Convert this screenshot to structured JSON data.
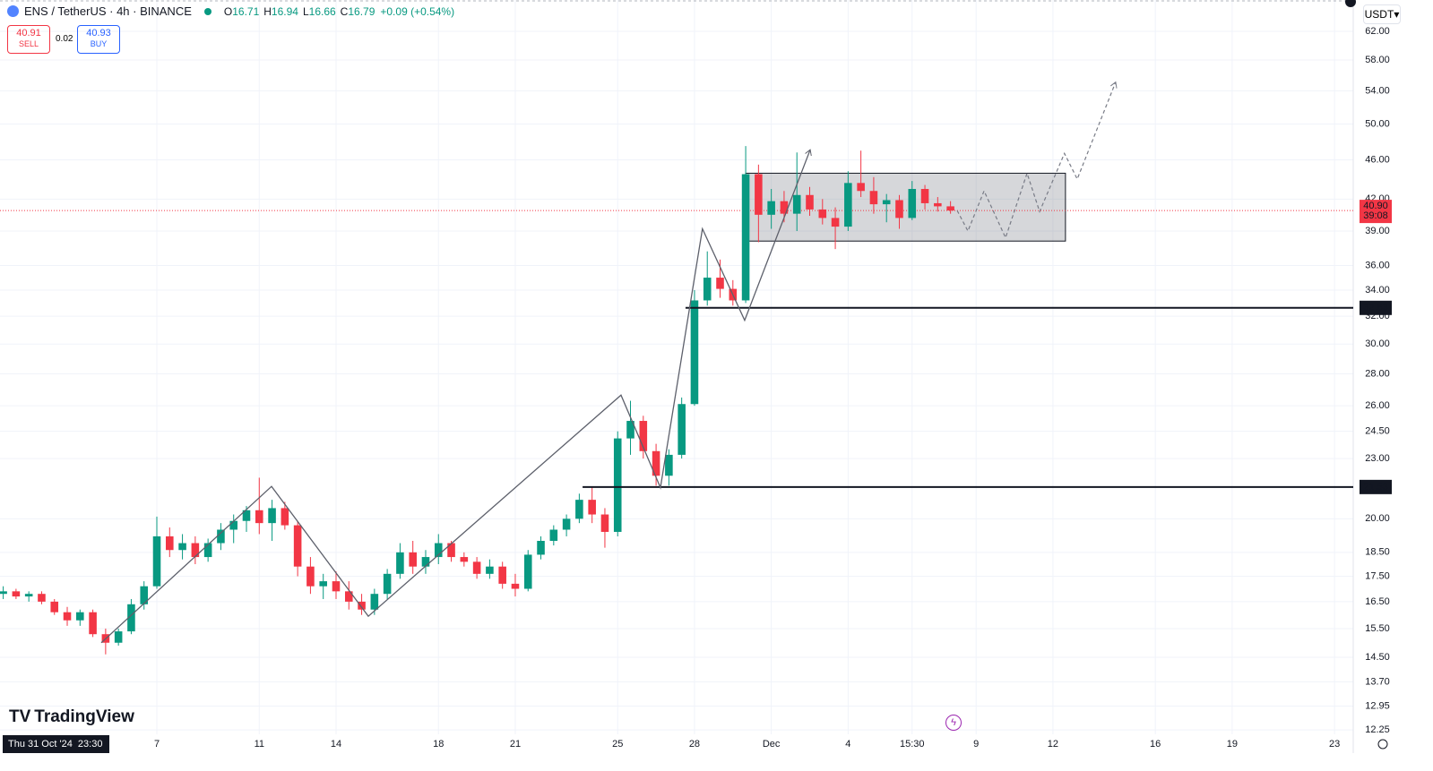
{
  "header": {
    "symbol": "ENS / TetherUS · 4h · BINANCE",
    "ohlc": [
      {
        "k": "O",
        "v": "16.71"
      },
      {
        "k": "H",
        "v": "16.94"
      },
      {
        "k": "L",
        "v": "16.66"
      },
      {
        "k": "C",
        "v": "16.79"
      }
    ],
    "change": "+0.09 (+0.54%)",
    "currency": "USDT"
  },
  "trade": {
    "sell_price": "40.91",
    "sell": "SELL",
    "spread": "0.02",
    "buy_price": "40.93",
    "buy": "BUY"
  },
  "brand": "TradingView",
  "cursor_time": "Thu 31 Oct '24  23:30",
  "chart_data": {
    "type": "candlestick",
    "log_scale": true,
    "grid": true,
    "up_color": "#089981",
    "down_color": "#f23645",
    "xlim": [
      -0.126,
      52.73
    ],
    "ylim": [
      11.61,
      66.67
    ],
    "xticks": [
      {
        "value": 6,
        "label": "7"
      },
      {
        "value": 10,
        "label": "11"
      },
      {
        "value": 13,
        "label": "14"
      },
      {
        "value": 17,
        "label": "18"
      },
      {
        "value": 20,
        "label": "21"
      },
      {
        "value": 24,
        "label": "25"
      },
      {
        "value": 27,
        "label": "28"
      },
      {
        "value": 30,
        "label": "Dec"
      },
      {
        "value": 33,
        "label": "4"
      },
      {
        "value": 35.5,
        "label": "15:30"
      },
      {
        "value": 38,
        "label": "9"
      },
      {
        "value": 41,
        "label": "12"
      },
      {
        "value": 45,
        "label": "16"
      },
      {
        "value": 48,
        "label": "19"
      },
      {
        "value": 52,
        "label": "23"
      }
    ],
    "yticks": [
      {
        "value": 62,
        "label": "62.00"
      },
      {
        "value": 58,
        "label": "58.00"
      },
      {
        "value": 54,
        "label": "54.00"
      },
      {
        "value": 50,
        "label": "50.00"
      },
      {
        "value": 46,
        "label": "46.00"
      },
      {
        "value": 42,
        "label": "42.00"
      },
      {
        "value": 39,
        "label": "39.00"
      },
      {
        "value": 36,
        "label": "36.00"
      },
      {
        "value": 34,
        "label": "34.00"
      },
      {
        "value": 32,
        "label": "32.00"
      },
      {
        "value": 30,
        "label": "30.00"
      },
      {
        "value": 28,
        "label": "28.00"
      },
      {
        "value": 26,
        "label": "26.00"
      },
      {
        "value": 24.5,
        "label": "24.50"
      },
      {
        "value": 23,
        "label": "23.00"
      },
      {
        "value": 20,
        "label": "20.00"
      },
      {
        "value": 18.5,
        "label": "18.50"
      },
      {
        "value": 17.5,
        "label": "17.50"
      },
      {
        "value": 16.5,
        "label": "16.50"
      },
      {
        "value": 15.5,
        "label": "15.50"
      },
      {
        "value": 14.5,
        "label": "14.50"
      },
      {
        "value": 13.7,
        "label": "13.70"
      },
      {
        "value": 12.95,
        "label": "12.95"
      },
      {
        "value": 12.25,
        "label": "12.25"
      }
    ],
    "candles": {
      "x": [
        0,
        0.5,
        1,
        1.5,
        2,
        2.5,
        3,
        3.5,
        4,
        4.5,
        5,
        5.5,
        6,
        6.5,
        7,
        7.5,
        8,
        8.5,
        9,
        9.5,
        10,
        10.5,
        11,
        11.5,
        12,
        12.5,
        13,
        13.5,
        14,
        14.5,
        15,
        15.5,
        16,
        16.5,
        17,
        17.5,
        18,
        18.5,
        19,
        19.5,
        20,
        20.5,
        21,
        21.5,
        22,
        22.5,
        23,
        23.5,
        24,
        24.5,
        25,
        25.5,
        26,
        26.5,
        27,
        27.5,
        28,
        28.5,
        29,
        29.5,
        30,
        30.5,
        31,
        31.5,
        32,
        32.5,
        33,
        33.5,
        34,
        34.5,
        35,
        35.5,
        36,
        36.5,
        37
      ],
      "ohlc": [
        [
          16.8,
          17.1,
          16.6,
          16.9
        ],
        [
          16.9,
          17.0,
          16.6,
          16.7
        ],
        [
          16.7,
          16.9,
          16.5,
          16.8
        ],
        [
          16.8,
          16.9,
          16.4,
          16.5
        ],
        [
          16.5,
          16.6,
          16.0,
          16.1
        ],
        [
          16.1,
          16.3,
          15.6,
          15.8
        ],
        [
          15.8,
          16.2,
          15.6,
          16.1
        ],
        [
          16.1,
          16.2,
          15.2,
          15.3
        ],
        [
          15.3,
          15.5,
          14.6,
          15.0
        ],
        [
          15.0,
          15.5,
          14.9,
          15.4
        ],
        [
          15.4,
          16.6,
          15.3,
          16.4
        ],
        [
          16.4,
          17.3,
          16.2,
          17.1
        ],
        [
          17.1,
          20.1,
          17.0,
          19.2
        ],
        [
          19.2,
          19.6,
          18.3,
          18.6
        ],
        [
          18.6,
          19.3,
          18.2,
          18.9
        ],
        [
          18.9,
          19.2,
          18.0,
          18.3
        ],
        [
          18.3,
          19.1,
          18.1,
          18.9
        ],
        [
          18.9,
          19.8,
          18.6,
          19.5
        ],
        [
          19.5,
          20.2,
          18.9,
          19.9
        ],
        [
          19.9,
          20.6,
          19.4,
          20.4
        ],
        [
          20.4,
          22.0,
          19.3,
          19.8
        ],
        [
          19.8,
          20.9,
          19.0,
          20.5
        ],
        [
          20.5,
          20.8,
          19.5,
          19.7
        ],
        [
          19.7,
          19.9,
          17.5,
          17.9
        ],
        [
          17.9,
          18.3,
          16.8,
          17.1
        ],
        [
          17.1,
          17.6,
          16.6,
          17.3
        ],
        [
          17.3,
          17.7,
          16.6,
          16.9
        ],
        [
          16.9,
          17.3,
          16.2,
          16.5
        ],
        [
          16.5,
          16.8,
          16.0,
          16.2
        ],
        [
          16.2,
          17.0,
          16.0,
          16.8
        ],
        [
          16.8,
          17.8,
          16.6,
          17.6
        ],
        [
          17.6,
          18.9,
          17.4,
          18.5
        ],
        [
          18.5,
          19.0,
          17.6,
          17.9
        ],
        [
          17.9,
          18.6,
          17.6,
          18.3
        ],
        [
          18.3,
          19.3,
          18.0,
          18.9
        ],
        [
          18.9,
          19.0,
          18.1,
          18.3
        ],
        [
          18.3,
          18.5,
          17.9,
          18.1
        ],
        [
          18.1,
          18.3,
          17.4,
          17.6
        ],
        [
          17.6,
          18.2,
          17.4,
          17.9
        ],
        [
          17.9,
          18.1,
          17.0,
          17.2
        ],
        [
          17.2,
          17.6,
          16.7,
          17.0
        ],
        [
          17.0,
          18.6,
          16.9,
          18.4
        ],
        [
          18.4,
          19.2,
          18.2,
          19.0
        ],
        [
          19.0,
          19.7,
          18.8,
          19.5
        ],
        [
          19.5,
          20.2,
          19.2,
          20.0
        ],
        [
          20.0,
          21.2,
          19.8,
          20.9
        ],
        [
          20.9,
          21.5,
          19.8,
          20.2
        ],
        [
          20.2,
          20.5,
          18.7,
          19.4
        ],
        [
          19.4,
          24.5,
          19.2,
          24.1
        ],
        [
          24.1,
          26.3,
          23.2,
          25.1
        ],
        [
          25.1,
          25.4,
          23.0,
          23.4
        ],
        [
          23.4,
          23.8,
          21.6,
          22.1
        ],
        [
          22.1,
          23.5,
          21.6,
          23.2
        ],
        [
          23.2,
          26.5,
          23.0,
          26.1
        ],
        [
          26.1,
          34.0,
          26.0,
          33.2
        ],
        [
          33.2,
          37.2,
          32.8,
          35.0
        ],
        [
          35.0,
          36.5,
          33.4,
          34.1
        ],
        [
          34.1,
          34.8,
          32.8,
          33.2
        ],
        [
          33.2,
          47.5,
          33.0,
          44.5
        ],
        [
          44.5,
          45.5,
          38.0,
          40.5
        ],
        [
          40.5,
          43.0,
          39.2,
          41.8
        ],
        [
          41.8,
          42.8,
          39.8,
          40.6
        ],
        [
          40.6,
          46.8,
          39.0,
          42.4
        ],
        [
          42.4,
          43.2,
          40.4,
          41.0
        ],
        [
          41.0,
          42.0,
          39.6,
          40.2
        ],
        [
          40.2,
          41.2,
          37.4,
          39.4
        ],
        [
          39.4,
          44.8,
          39.0,
          43.6
        ],
        [
          43.6,
          47.0,
          42.2,
          42.8
        ],
        [
          42.8,
          44.2,
          40.6,
          41.5
        ],
        [
          41.5,
          42.5,
          39.8,
          41.9
        ],
        [
          41.9,
          42.4,
          39.2,
          40.2
        ],
        [
          40.2,
          43.8,
          40.0,
          43.0
        ],
        [
          43.0,
          43.4,
          41.0,
          41.6
        ],
        [
          41.6,
          42.2,
          40.8,
          41.3
        ],
        [
          41.3,
          41.8,
          40.6,
          40.9
        ]
      ]
    },
    "last_price": {
      "value": 40.9,
      "label": "40.90",
      "countdown": "39:08",
      "color": "#f23645"
    },
    "levels": [
      {
        "value": 32.63,
        "start": 26.65
      },
      {
        "value": 21.53,
        "start": 22.63
      }
    ],
    "range_box": {
      "x": [
        29.0,
        41.49
      ],
      "y": [
        38.1,
        44.6
      ]
    },
    "trend_path": {
      "x": [
        3.83,
        10.48,
        14.26,
        24.13,
        25.67,
        27.31,
        28.96,
        31.52
      ],
      "y": [
        15.0,
        21.56,
        15.95,
        26.65,
        21.5,
        39.2,
        31.7,
        47.1
      ]
    },
    "projection_path": {
      "x": [
        37.26,
        37.68,
        38.31,
        39.15,
        39.99,
        40.48,
        41.45,
        41.95,
        43.45
      ],
      "y": [
        40.9,
        39.0,
        42.8,
        38.4,
        44.6,
        40.8,
        46.7,
        44.0,
        55.1
      ]
    }
  }
}
